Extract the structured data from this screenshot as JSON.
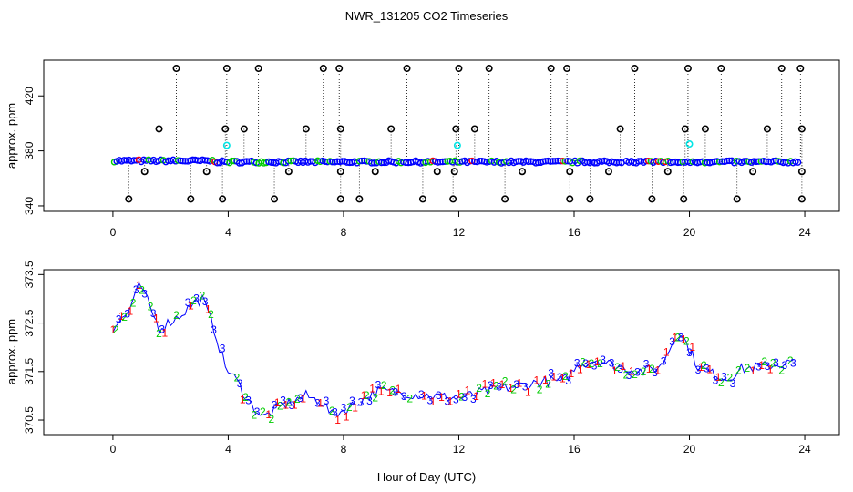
{
  "colors": {
    "plot1": "#0000ff",
    "plot2": "#ff0000",
    "plot3": "#00cc00",
    "outlier": "#000000",
    "cyan": "#00e5e5",
    "axis": "#000000"
  },
  "chart_data": [
    {
      "type": "scatter",
      "title": "NWR_131205  CO2 Timeseries",
      "xlabel": "",
      "ylabel": "approx. ppm",
      "xlim": [
        -2.4,
        25.2
      ],
      "ylim": [
        336,
        446
      ],
      "x_ticks": [
        "0",
        "4",
        "8",
        "12",
        "16",
        "20",
        "24"
      ],
      "x_tick_values": [
        0,
        4,
        8,
        12,
        16,
        20,
        24
      ],
      "y_ticks": [
        "340",
        "380",
        "420"
      ],
      "y_tick_values": [
        340,
        380,
        420
      ],
      "baseline_ppm": 372,
      "high_spikes": [
        {
          "x": 2.2,
          "y": 440
        },
        {
          "x": 3.95,
          "y": 440
        },
        {
          "x": 5.05,
          "y": 440
        },
        {
          "x": 7.3,
          "y": 440
        },
        {
          "x": 7.85,
          "y": 440
        },
        {
          "x": 10.2,
          "y": 440
        },
        {
          "x": 12.0,
          "y": 440
        },
        {
          "x": 13.05,
          "y": 440
        },
        {
          "x": 15.2,
          "y": 440
        },
        {
          "x": 15.75,
          "y": 440
        },
        {
          "x": 18.1,
          "y": 440
        },
        {
          "x": 19.95,
          "y": 440
        },
        {
          "x": 21.1,
          "y": 440
        },
        {
          "x": 23.2,
          "y": 440
        },
        {
          "x": 23.85,
          "y": 440
        }
      ],
      "mid_high": [
        {
          "x": 1.6,
          "y": 396
        },
        {
          "x": 3.9,
          "y": 396
        },
        {
          "x": 4.55,
          "y": 396
        },
        {
          "x": 6.7,
          "y": 396
        },
        {
          "x": 7.9,
          "y": 396
        },
        {
          "x": 9.65,
          "y": 396
        },
        {
          "x": 11.9,
          "y": 396
        },
        {
          "x": 12.55,
          "y": 396
        },
        {
          "x": 17.6,
          "y": 396
        },
        {
          "x": 19.85,
          "y": 396
        },
        {
          "x": 20.55,
          "y": 396
        },
        {
          "x": 22.7,
          "y": 396
        },
        {
          "x": 23.9,
          "y": 396
        }
      ],
      "low_spikes": [
        {
          "x": 0.55,
          "y": 345
        },
        {
          "x": 2.7,
          "y": 345
        },
        {
          "x": 3.8,
          "y": 345
        },
        {
          "x": 5.6,
          "y": 345
        },
        {
          "x": 7.9,
          "y": 345
        },
        {
          "x": 8.55,
          "y": 345
        },
        {
          "x": 10.75,
          "y": 345
        },
        {
          "x": 11.8,
          "y": 345
        },
        {
          "x": 13.6,
          "y": 345
        },
        {
          "x": 15.85,
          "y": 345
        },
        {
          "x": 16.55,
          "y": 345
        },
        {
          "x": 18.7,
          "y": 345
        },
        {
          "x": 19.8,
          "y": 345
        },
        {
          "x": 21.65,
          "y": 345
        },
        {
          "x": 23.9,
          "y": 345
        }
      ],
      "mid_low": [
        {
          "x": 1.1,
          "y": 365
        },
        {
          "x": 3.25,
          "y": 365
        },
        {
          "x": 6.1,
          "y": 365
        },
        {
          "x": 7.9,
          "y": 365
        },
        {
          "x": 9.1,
          "y": 365
        },
        {
          "x": 11.25,
          "y": 365
        },
        {
          "x": 11.85,
          "y": 365
        },
        {
          "x": 14.2,
          "y": 365
        },
        {
          "x": 15.85,
          "y": 365
        },
        {
          "x": 17.2,
          "y": 365
        },
        {
          "x": 19.25,
          "y": 365
        },
        {
          "x": 22.2,
          "y": 365
        },
        {
          "x": 23.9,
          "y": 365
        }
      ],
      "cyan_points": [
        {
          "x": 3.95,
          "y": 384
        },
        {
          "x": 11.95,
          "y": 384
        },
        {
          "x": 20.0,
          "y": 385
        }
      ]
    },
    {
      "type": "scatter",
      "title": "",
      "xlabel": "Hour of Day (UTC)",
      "ylabel": "approx. ppm",
      "xlim": [
        -2.4,
        25.2
      ],
      "ylim": [
        370.2,
        373.6
      ],
      "x_ticks": [
        "0",
        "4",
        "8",
        "12",
        "16",
        "20",
        "24"
      ],
      "x_tick_values": [
        0,
        4,
        8,
        12,
        16,
        20,
        24
      ],
      "y_ticks": [
        "370.5",
        "371.5",
        "372.5",
        "373.5"
      ],
      "y_tick_values": [
        370.5,
        371.5,
        372.5,
        373.5
      ],
      "series_labels": [
        "1",
        "2",
        "3"
      ],
      "profile": [
        [
          0,
          372.4
        ],
        [
          0.5,
          372.7
        ],
        [
          0.95,
          373.3
        ],
        [
          1.3,
          372.8
        ],
        [
          1.6,
          372.4
        ],
        [
          2.2,
          372.6
        ],
        [
          2.8,
          372.9
        ],
        [
          3.1,
          373.0
        ],
        [
          3.5,
          372.4
        ],
        [
          3.9,
          371.6
        ],
        [
          4.3,
          371.3
        ],
        [
          4.7,
          370.9
        ],
        [
          5.2,
          370.55
        ],
        [
          5.6,
          370.7
        ],
        [
          6.1,
          370.85
        ],
        [
          6.7,
          371.0
        ],
        [
          7.3,
          370.85
        ],
        [
          7.6,
          370.6
        ],
        [
          8.0,
          370.7
        ],
        [
          8.6,
          370.9
        ],
        [
          9.2,
          371.1
        ],
        [
          10.2,
          371.05
        ],
        [
          11.0,
          371.0
        ],
        [
          12.0,
          370.95
        ],
        [
          13.0,
          371.1
        ],
        [
          14.0,
          371.2
        ],
        [
          15.0,
          371.3
        ],
        [
          15.6,
          371.3
        ],
        [
          16.2,
          371.65
        ],
        [
          16.8,
          371.75
        ],
        [
          17.5,
          371.6
        ],
        [
          18.4,
          371.5
        ],
        [
          19.0,
          371.6
        ],
        [
          19.5,
          372.2
        ],
        [
          19.7,
          372.3
        ],
        [
          20.3,
          371.6
        ],
        [
          20.8,
          371.45
        ],
        [
          21.3,
          371.35
        ],
        [
          21.8,
          371.55
        ],
        [
          22.5,
          371.6
        ],
        [
          23.7,
          371.7
        ]
      ]
    }
  ]
}
